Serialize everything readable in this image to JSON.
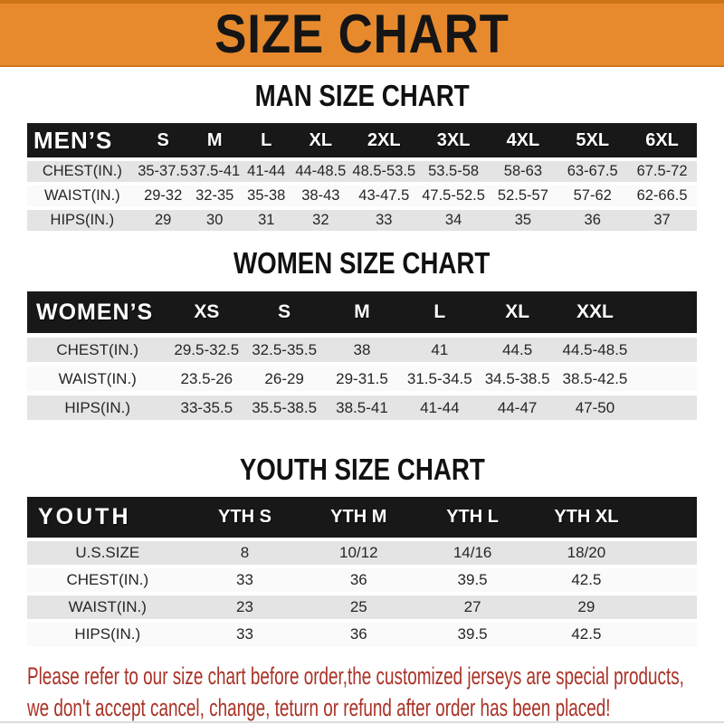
{
  "colors": {
    "banner_bg": "#E78A2E",
    "banner_border": "#CE7418",
    "header_bar": "#181818",
    "row_gray": "#E4E4E4",
    "row_white": "#FAFAFA",
    "footer_red": "#A93226"
  },
  "banner": {
    "title": "SIZE CHART"
  },
  "chart_data": [
    {
      "type": "table",
      "title": "MAN SIZE CHART",
      "header_label": "MEN’S",
      "columns": [
        "S",
        "M",
        "L",
        "XL",
        "2XL",
        "3XL",
        "4XL",
        "5XL",
        "6XL"
      ],
      "rows": [
        {
          "label": "CHEST(IN.)",
          "values": [
            "35-37.5",
            "37.5-41",
            "41-44",
            "44-48.5",
            "48.5-53.5",
            "53.5-58",
            "58-63",
            "63-67.5",
            "67.5-72"
          ]
        },
        {
          "label": "WAIST(IN.)",
          "values": [
            "29-32",
            "32-35",
            "35-38",
            "38-43",
            "43-47.5",
            "47.5-52.5",
            "52.5-57",
            "57-62",
            "62-66.5"
          ]
        },
        {
          "label": "HIPS(IN.)",
          "values": [
            "29",
            "30",
            "31",
            "32",
            "33",
            "34",
            "35",
            "36",
            "37"
          ]
        }
      ]
    },
    {
      "type": "table",
      "title": "WOMEN SIZE CHART",
      "header_label": "WOMEN’S",
      "columns": [
        "XS",
        "S",
        "M",
        "L",
        "XL",
        "XXL"
      ],
      "rows": [
        {
          "label": "CHEST(IN.)",
          "values": [
            "29.5-32.5",
            "32.5-35.5",
            "38",
            "41",
            "44.5",
            "44.5-48.5"
          ]
        },
        {
          "label": "WAIST(IN.)",
          "values": [
            "23.5-26",
            "26-29",
            "29-31.5",
            "31.5-34.5",
            "34.5-38.5",
            "38.5-42.5"
          ]
        },
        {
          "label": "HIPS(IN.)",
          "values": [
            "33-35.5",
            "35.5-38.5",
            "38.5-41",
            "41-44",
            "44-47",
            "47-50"
          ]
        }
      ]
    },
    {
      "type": "table",
      "title": "YOUTH SIZE CHART",
      "header_label": "YOUTH",
      "columns": [
        "YTH S",
        "YTH M",
        "YTH L",
        "YTH XL"
      ],
      "rows": [
        {
          "label": "U.S.SIZE",
          "values": [
            "8",
            "10/12",
            "14/16",
            "18/20"
          ]
        },
        {
          "label": "CHEST(IN.)",
          "values": [
            "33",
            "36",
            "39.5",
            "42.5"
          ]
        },
        {
          "label": "WAIST(IN.)",
          "values": [
            "23",
            "25",
            "27",
            "29"
          ]
        },
        {
          "label": "HIPS(IN.)",
          "values": [
            "33",
            "36",
            "39.5",
            "42.5"
          ]
        }
      ]
    }
  ],
  "footer": {
    "lines": [
      "Please refer to our size chart before order,the customized jerseys are special products,",
      "we don't accept cancel, change, teturn or refund after order has been placed!"
    ]
  }
}
